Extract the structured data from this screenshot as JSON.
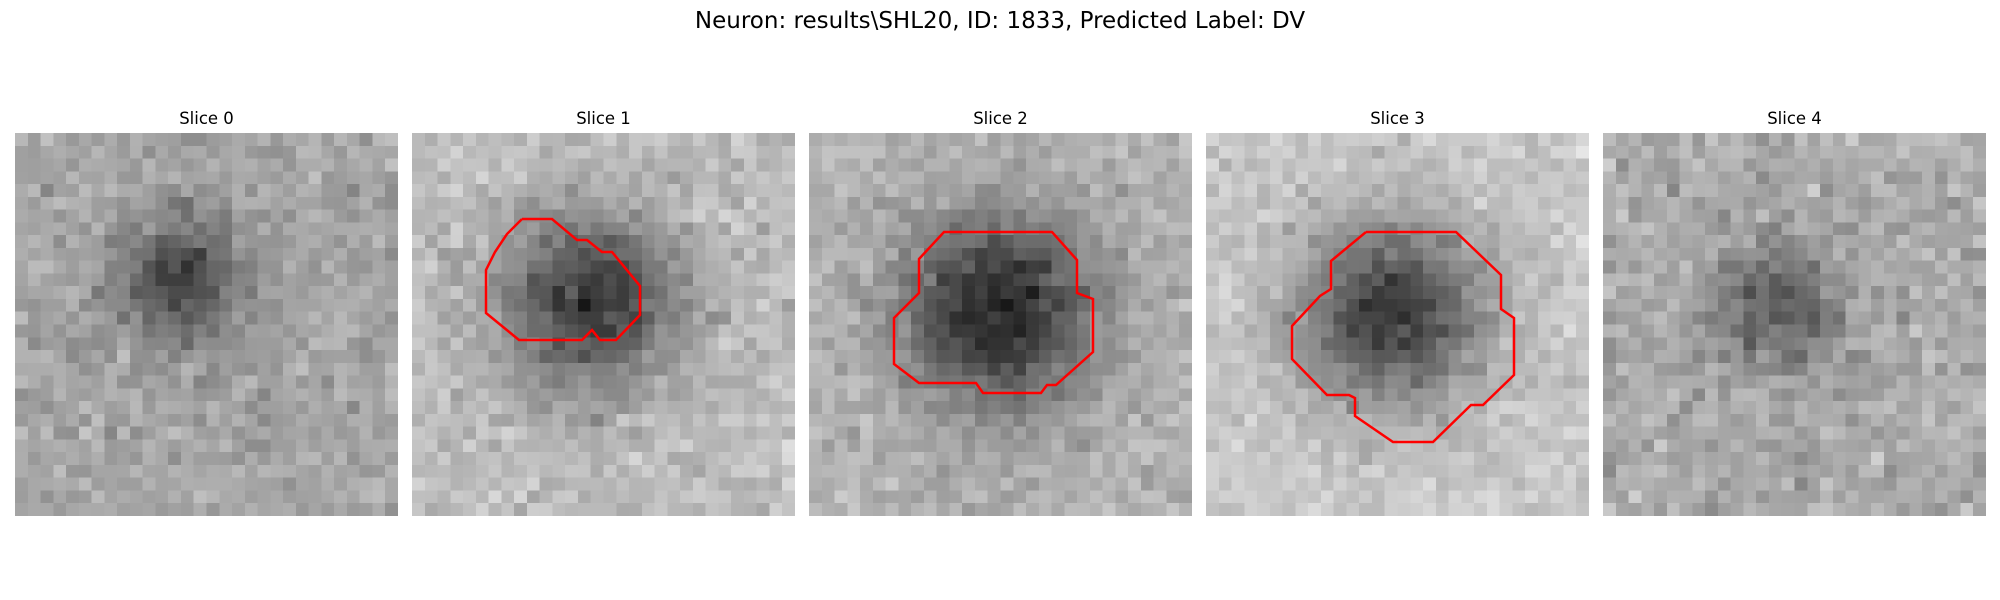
{
  "figure": {
    "title": "Neuron: results\\SHL20, ID: 1833, Predicted Label: DV"
  },
  "colors": {
    "background": "#ffffff",
    "contour": "#ff0000",
    "colormap": "grayscale"
  },
  "slices": [
    {
      "title": "Slice 0",
      "has_contour": false
    },
    {
      "title": "Slice 1",
      "has_contour": true
    },
    {
      "title": "Slice 2",
      "has_contour": true
    },
    {
      "title": "Slice 3",
      "has_contour": true
    },
    {
      "title": "Slice 4",
      "has_contour": false
    }
  ]
}
